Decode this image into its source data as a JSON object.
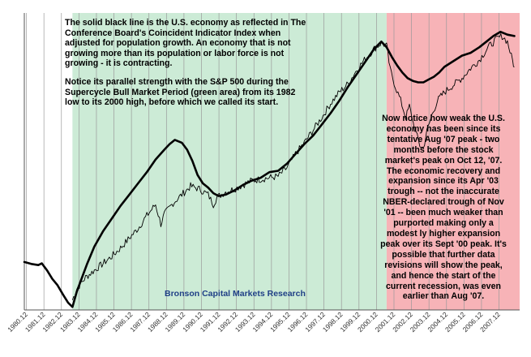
{
  "chart_data": {
    "type": "line",
    "title": "",
    "xlabel": "",
    "ylabel": "",
    "x_tick_labels": [
      "1980.12",
      "1981.12",
      "1982.12",
      "1983.12",
      "1984.12",
      "1985.12",
      "1986.12",
      "1987.12",
      "1988.12",
      "1989.12",
      "1990.12",
      "1991.12",
      "1992.12",
      "1993.12",
      "1994.12",
      "1995.12",
      "1996.12",
      "1997.12",
      "1998.12",
      "1999.12",
      "2000.12",
      "2001.12",
      "2002.12",
      "2003.12",
      "2004.12",
      "2005.12",
      "2006.12",
      "2007.12"
    ],
    "x_range": [
      1980.0,
      2008.3
    ],
    "y_range": [
      0,
      100
    ],
    "grid": "vertical",
    "regions": [
      {
        "name": "bull",
        "start": 1982.75,
        "end": 2000.7,
        "color": "#ccebd6"
      },
      {
        "name": "bear",
        "start": 2000.7,
        "end": 2008.3,
        "color": "#f7b3b7"
      }
    ],
    "series": [
      {
        "color": "#000000",
        "style": "thick-line",
        "x": [
          1980.0,
          1980.4,
          1980.8,
          1981.0,
          1981.3,
          1981.6,
          1981.9,
          1982.2,
          1982.5,
          1982.75,
          1983.0,
          1983.3,
          1983.6,
          1984.0,
          1984.5,
          1985.0,
          1985.5,
          1986.0,
          1986.5,
          1987.0,
          1987.5,
          1988.0,
          1988.3,
          1988.6,
          1989.0,
          1989.3,
          1989.6,
          1989.9,
          1990.2,
          1990.5,
          1990.8,
          1991.1,
          1991.5,
          1992.0,
          1992.5,
          1993.0,
          1993.5,
          1994.0,
          1994.5,
          1995.0,
          1995.5,
          1996.0,
          1996.5,
          1997.0,
          1997.5,
          1998.0,
          1998.5,
          1999.0,
          1999.5,
          2000.0,
          2000.4,
          2000.7,
          2001.0,
          2001.3,
          2001.6,
          2001.9,
          2002.2,
          2002.5,
          2002.8,
          2003.1,
          2003.4,
          2003.7,
          2004.0,
          2004.5,
          2005.0,
          2005.5,
          2006.0,
          2006.4,
          2006.8,
          2007.2,
          2007.6,
          2008.0
        ],
        "values": [
          16.5,
          15.8,
          15.4,
          16.0,
          13.5,
          10.5,
          8.2,
          5.0,
          2.0,
          0.5,
          6.0,
          11.0,
          16.0,
          22.0,
          27.5,
          32.0,
          36.5,
          40.5,
          44.5,
          48.5,
          53.0,
          56.5,
          58.5,
          60.0,
          59.0,
          56.5,
          52.5,
          47.5,
          44.5,
          43.0,
          41.0,
          40.0,
          40.5,
          42.0,
          44.0,
          45.5,
          46.5,
          48.5,
          49.0,
          51.5,
          55.0,
          58.5,
          61.5,
          65.5,
          69.5,
          74.0,
          79.0,
          83.5,
          88.0,
          92.5,
          95.0,
          93.0,
          89.5,
          86.5,
          84.0,
          82.0,
          81.0,
          80.5,
          80.5,
          81.5,
          82.5,
          84.0,
          86.0,
          88.0,
          90.0,
          91.0,
          93.0,
          95.0,
          97.0,
          98.5,
          97.5,
          97.0
        ]
      },
      {
        "color": "#000000",
        "style": "thin-noisy",
        "x": [
          1982.75,
          1983.0,
          1983.5,
          1984.0,
          1984.5,
          1985.0,
          1985.5,
          1986.0,
          1986.5,
          1987.0,
          1987.5,
          1987.8,
          1988.0,
          1988.5,
          1989.0,
          1989.5,
          1990.0,
          1990.5,
          1990.8,
          1991.0,
          1991.5,
          1992.0,
          1992.5,
          1993.0,
          1993.5,
          1994.0,
          1994.5,
          1995.0,
          1995.5,
          1996.0,
          1996.5,
          1997.0,
          1997.5,
          1998.0,
          1998.5,
          1999.0,
          1999.5,
          2000.0,
          2000.4,
          2000.7,
          2000.9,
          2001.2,
          2001.5,
          2001.8,
          2002.0,
          2002.3,
          2002.6,
          2002.8,
          2003.0,
          2003.3,
          2003.6,
          2004.0,
          2004.5,
          2005.0,
          2005.5,
          2006.0,
          2006.5,
          2007.0,
          2007.3,
          2007.6,
          2007.9,
          2008.0
        ],
        "values": [
          3.0,
          7.0,
          11.0,
          13.5,
          16.0,
          18.5,
          21.5,
          25.0,
          28.5,
          33.0,
          37.0,
          30.0,
          33.5,
          37.5,
          40.5,
          43.5,
          42.5,
          40.5,
          37.0,
          39.5,
          41.5,
          42.5,
          44.0,
          45.5,
          46.0,
          46.5,
          47.0,
          50.0,
          55.0,
          59.0,
          63.5,
          68.0,
          73.0,
          77.0,
          80.0,
          85.0,
          89.0,
          92.5,
          94.5,
          93.5,
          85.0,
          79.0,
          74.0,
          68.0,
          72.0,
          64.0,
          58.0,
          57.0,
          63.0,
          69.0,
          74.0,
          77.0,
          79.5,
          82.0,
          85.5,
          88.5,
          93.0,
          96.0,
          97.0,
          95.0,
          88.0,
          86.0
        ]
      }
    ],
    "annotations": {
      "left": [
        "The solid black line is the U.S. economy as reflected in The Conference Board's Coincident Indicator Index when adjusted for population growth.  An economy that is not growing more than its population or labor force is not growing - it is contracting.",
        "Notice its parallel strength with the S&P 500 during the  Supercycle Bull Market Period (green area) from its 1982 low to its 2000 high, before which we called its start."
      ],
      "right": "Now notice how weak the U.S. economy has been since its tentative Aug '07 peak - two months before the stock market's peak on Oct 12, '07. The economic recovery and expansion since its Apr '03 trough -- not the inaccurate NBER-declared trough of Nov '01 -- been much weaker than purported making only a modest ly higher expansion peak over its Sept '00 peak. It's possible that further data revisions will show the peak, and hence the start of the current recession, was even earlier than Aug '07.",
      "watermark": "Bronson Capital Markets Research"
    }
  }
}
